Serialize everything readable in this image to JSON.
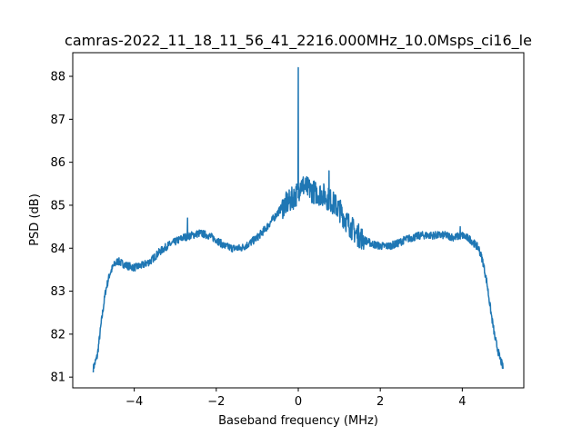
{
  "chart_data": {
    "type": "line",
    "title": "camras-2022_11_18_11_56_41_2216.000MHz_10.0Msps_ci16_le",
    "xlabel": "Baseband frequency (MHz)",
    "ylabel": "PSD (dB)",
    "xlim": [
      -5.5,
      5.5
    ],
    "ylim": [
      80.75,
      88.55
    ],
    "xticks": [
      -4,
      -2,
      0,
      2,
      4
    ],
    "xtick_labels": [
      "−4",
      "−2",
      "0",
      "2",
      "4"
    ],
    "yticks": [
      81,
      82,
      83,
      84,
      85,
      86,
      87,
      88
    ],
    "ytick_labels": [
      "81",
      "82",
      "83",
      "84",
      "85",
      "86",
      "87",
      "88"
    ],
    "grid": false,
    "series": [
      {
        "color": "#1f77b4",
        "x": [
          -5.0,
          -4.9,
          -4.8,
          -4.7,
          -4.6,
          -4.5,
          -4.4,
          -4.2,
          -4.0,
          -3.8,
          -3.6,
          -3.4,
          -3.2,
          -3.0,
          -2.8,
          -2.6,
          -2.4,
          -2.2,
          -2.0,
          -1.8,
          -1.6,
          -1.4,
          -1.2,
          -1.0,
          -0.8,
          -0.6,
          -0.4,
          -0.2,
          -0.1,
          0.0,
          0.05,
          0.2,
          0.4,
          0.6,
          0.8,
          1.0,
          1.2,
          1.4,
          1.6,
          1.8,
          2.0,
          2.2,
          2.4,
          2.6,
          2.8,
          3.0,
          3.2,
          3.4,
          3.6,
          3.8,
          4.0,
          4.2,
          4.4,
          4.5,
          4.6,
          4.7,
          4.8,
          4.9,
          5.0
        ],
        "y": [
          81.2,
          81.5,
          82.3,
          83.0,
          83.4,
          83.6,
          83.7,
          83.6,
          83.55,
          83.6,
          83.7,
          83.9,
          84.05,
          84.15,
          84.25,
          84.3,
          84.35,
          84.3,
          84.2,
          84.05,
          84.0,
          84.0,
          84.1,
          84.25,
          84.45,
          84.7,
          84.95,
          85.1,
          85.2,
          85.3,
          85.5,
          85.4,
          85.3,
          85.25,
          85.1,
          84.9,
          84.6,
          84.35,
          84.2,
          84.1,
          84.05,
          84.05,
          84.1,
          84.2,
          84.25,
          84.3,
          84.3,
          84.3,
          84.3,
          84.25,
          84.3,
          84.2,
          84.0,
          83.7,
          83.2,
          82.5,
          81.9,
          81.5,
          81.2
        ],
        "peaks": [
          {
            "x": 0.0,
            "y": 88.2
          },
          {
            "x": -2.7,
            "y": 84.7
          },
          {
            "x": 0.75,
            "y": 85.8
          },
          {
            "x": 3.95,
            "y": 84.5
          }
        ]
      }
    ]
  }
}
